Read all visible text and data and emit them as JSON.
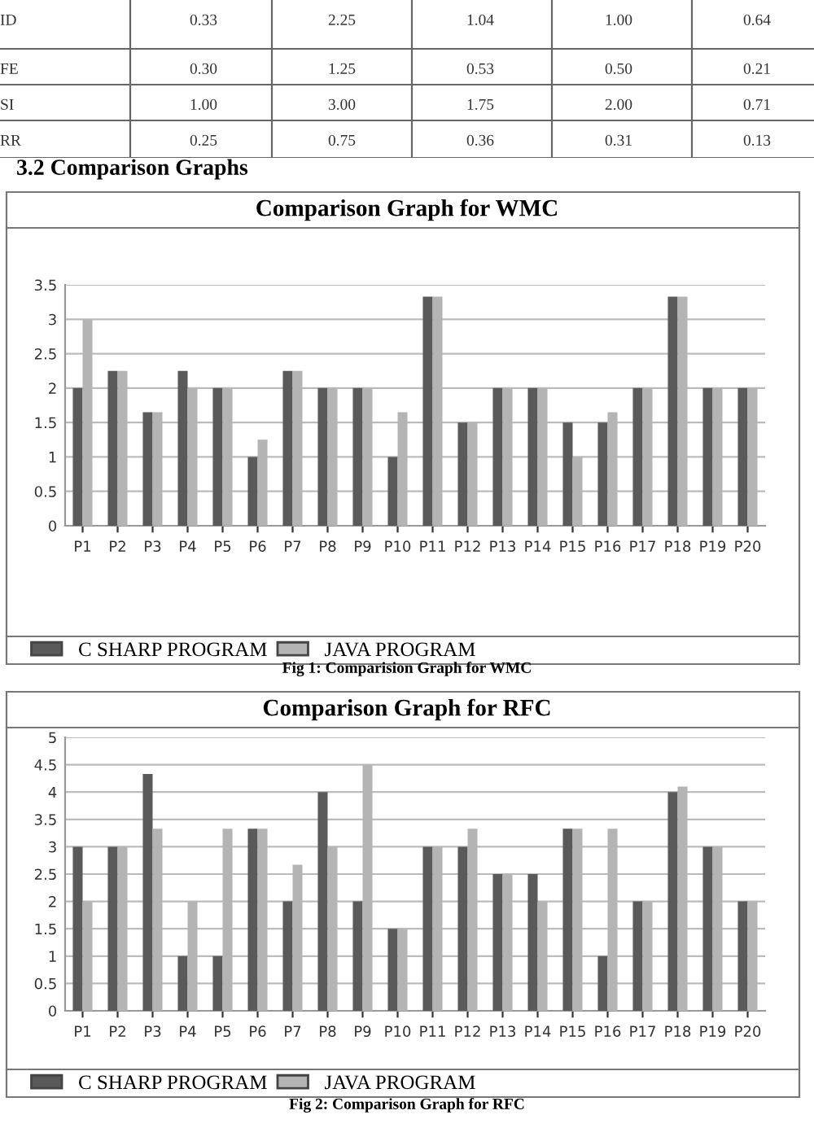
{
  "chart_data": [
    {
      "type": "other",
      "title": "3.2 Comparison Graphs",
      "annotations": [
        "ID",
        "0.33",
        "2.25",
        "1.04",
        "1.00",
        "0.64",
        "FE",
        "0.30",
        "1.25",
        "0.53",
        "0.50",
        "0.21",
        "SI",
        "1.00",
        "3.00",
        "1.75",
        "2.00",
        "0.71",
        "RR",
        "0.25",
        "0.75",
        "0.36",
        "0.31",
        "0.13"
      ]
    },
    {
      "type": "bar",
      "title": "Comparison Graph for WMC",
      "categories": [
        "P1",
        "P2",
        "P3",
        "P4",
        "P5",
        "P6",
        "P7",
        "P8",
        "P9",
        "P10",
        "P11",
        "P12",
        "P13",
        "P14",
        "P15",
        "P16",
        "P17",
        "P18",
        "P19",
        "P20"
      ],
      "series": [
        {
          "name": "C SHARP PROGRAM",
          "color": "#5a5a5a",
          "values": [
            2,
            2.25,
            1.65,
            2.25,
            2,
            1,
            2.25,
            2,
            2,
            1,
            3.33,
            1.5,
            2,
            2,
            1.5,
            1.5,
            2,
            3.33,
            2,
            2
          ]
        },
        {
          "name": "JAVA PROGRAM",
          "color": "#b4b4b4",
          "values": [
            3,
            2.25,
            1.65,
            2,
            2,
            1.25,
            2.25,
            2,
            2,
            1.65,
            3.33,
            1.5,
            2,
            2,
            1,
            1.65,
            2,
            3.33,
            2,
            2
          ]
        }
      ],
      "ylim": [
        0,
        3.5
      ],
      "yticks": [
        0,
        0.5,
        1,
        1.5,
        2,
        2.5,
        3,
        3.5
      ],
      "grid": "y",
      "legend": "bottom",
      "annotations": [
        "Fig 1: Comparision Graph for WMC"
      ]
    },
    {
      "type": "bar",
      "title": "Comparison Graph for RFC",
      "categories": [
        "P1",
        "P2",
        "P3",
        "P4",
        "P5",
        "P6",
        "P7",
        "P8",
        "P9",
        "P10",
        "P11",
        "P12",
        "P13",
        "P14",
        "P15",
        "P16",
        "P17",
        "P18",
        "P19",
        "P20"
      ],
      "series": [
        {
          "name": "C SHARP PROGRAM",
          "color": "#5a5a5a",
          "values": [
            3,
            3,
            4.33,
            1,
            1,
            3.33,
            2,
            4,
            2,
            1.5,
            3,
            3,
            2.5,
            2.5,
            3.33,
            1,
            2,
            4,
            3,
            2
          ]
        },
        {
          "name": "JAVA PROGRAM",
          "color": "#b4b4b4",
          "values": [
            2,
            3,
            3.33,
            2,
            3.33,
            3.33,
            2.67,
            3,
            4.5,
            1.5,
            3,
            3.33,
            2.5,
            2,
            3.33,
            3.33,
            2,
            4.1,
            3,
            2
          ]
        }
      ],
      "ylim": [
        0,
        5
      ],
      "yticks": [
        0,
        0.5,
        1,
        1.5,
        2,
        2.5,
        3,
        3.5,
        4,
        4.5,
        5
      ],
      "grid": "y",
      "legend": "bottom",
      "annotations": [
        "Fig 2: Comparison Graph for RFC"
      ]
    }
  ]
}
